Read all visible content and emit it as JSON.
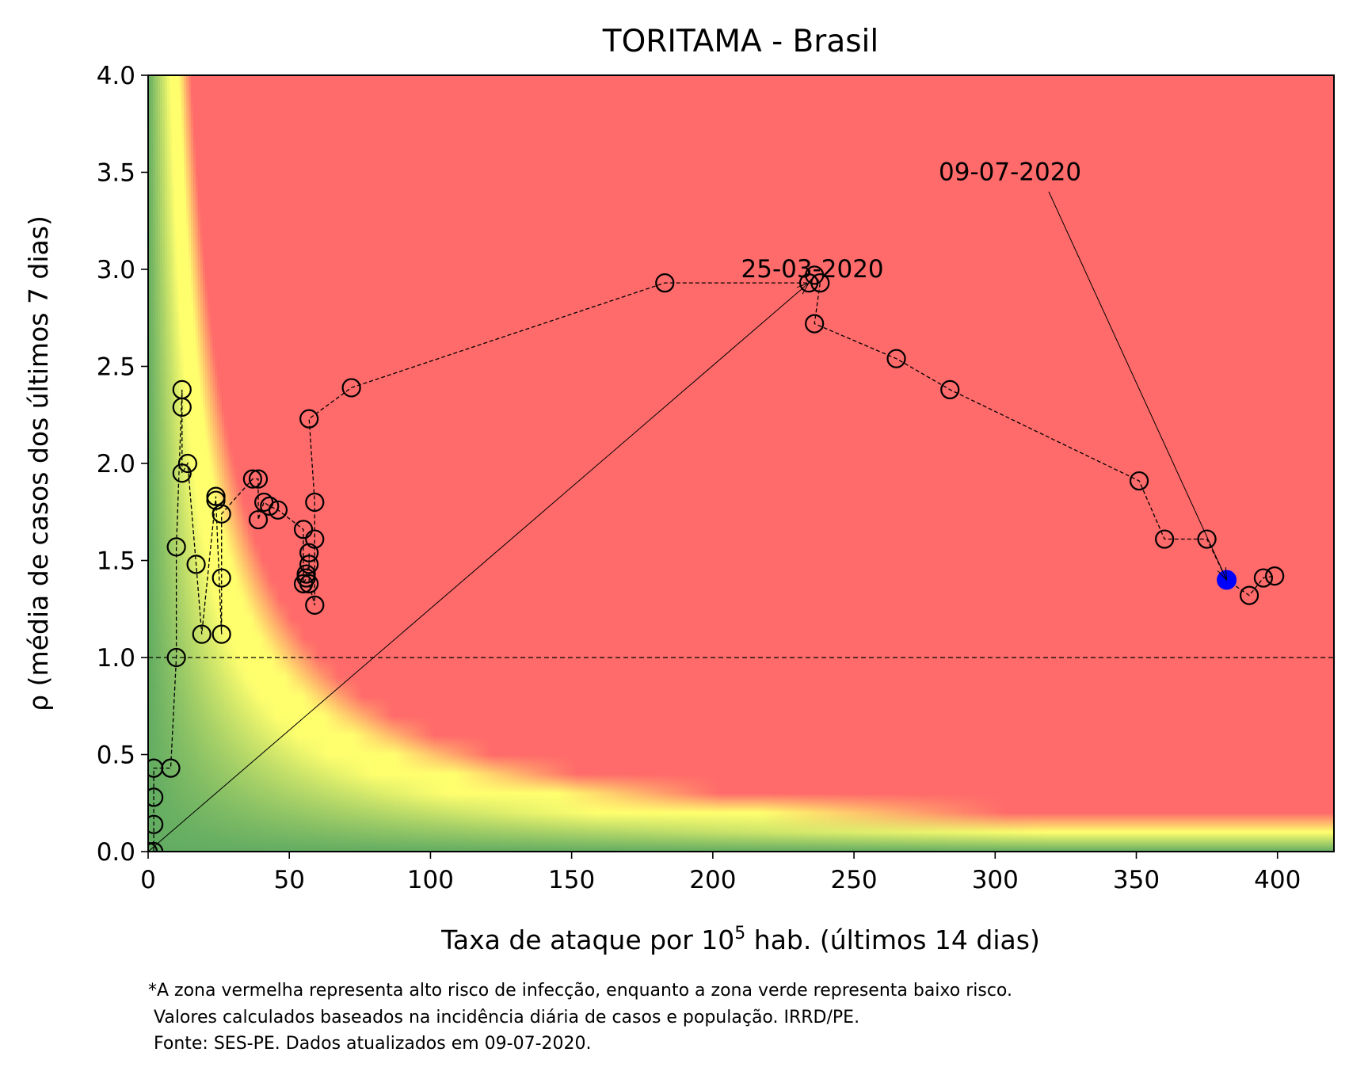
{
  "chart_data": {
    "type": "scatter",
    "title": "TORITAMA - Brasil",
    "xlabel_prefix": "Taxa de ataque por 10",
    "xlabel_sup": "5",
    "xlabel_suffix": " hab. (últimos 14 dias)",
    "ylabel": "ρ (média de casos dos últimos 7 dias)",
    "xlim": [
      0,
      420
    ],
    "ylim": [
      0,
      4.0
    ],
    "x_ticks": [
      0,
      50,
      100,
      150,
      200,
      250,
      300,
      350,
      400
    ],
    "y_ticks": [
      "0.0",
      "0.5",
      "1.0",
      "1.5",
      "2.0",
      "2.5",
      "3.0",
      "3.5",
      "4.0"
    ],
    "reference_line_y": 1.0,
    "background": "risk gradient: green (low risk) to yellow to red (high risk), boundary along x·ρ ≈ constant",
    "colors": {
      "red_zone": "#ff6a6a",
      "yellow_band": "#ffff6e",
      "green_zone": "#62ac62",
      "last_point": "#0000ff"
    },
    "series": [
      {
        "x": [
          0,
          2,
          2,
          2,
          2,
          8,
          10,
          10,
          12,
          12,
          12,
          14,
          17,
          19,
          24,
          24,
          26,
          26,
          26,
          37,
          39,
          39,
          41,
          43,
          46,
          55,
          55,
          56,
          56,
          57,
          57,
          57,
          59,
          59,
          59,
          57,
          72,
          183,
          234,
          236,
          238,
          236,
          265,
          284,
          351,
          360,
          375,
          382,
          390,
          395,
          399
        ],
        "y": [
          0.0,
          0.0,
          0.14,
          0.28,
          0.43,
          0.43,
          1.0,
          1.57,
          2.38,
          2.29,
          1.95,
          2.0,
          1.48,
          1.12,
          1.83,
          1.81,
          1.12,
          1.41,
          1.74,
          1.92,
          1.92,
          1.71,
          1.8,
          1.78,
          1.76,
          1.66,
          1.38,
          1.41,
          1.43,
          1.48,
          1.54,
          1.38,
          1.27,
          1.61,
          1.8,
          2.23,
          2.39,
          2.93,
          2.93,
          2.97,
          2.93,
          2.72,
          2.54,
          2.38,
          1.91,
          1.61,
          1.61,
          1.4,
          1.32,
          1.41,
          1.42
        ]
      }
    ],
    "annotations": [
      {
        "text": "25-03-2020",
        "x": 210,
        "y": 3.0,
        "arrow_to_x": 234,
        "arrow_to_y": 2.93,
        "arrow_from_x": 0,
        "arrow_from_y": 0
      },
      {
        "text": "09-07-2020",
        "x": 280,
        "y": 3.5,
        "arrow_from_x": 319,
        "arrow_from_y": 3.4,
        "arrow_to_x": 382,
        "arrow_to_y": 1.4
      }
    ]
  },
  "footnote": [
    "*A zona vermelha representa alto risco de infecção, enquanto a zona verde representa baixo risco.",
    " Valores calculados baseados na incidência diária de casos e população. IRRD/PE.",
    " Fonte: SES-PE. Dados atualizados em 09-07-2020."
  ]
}
